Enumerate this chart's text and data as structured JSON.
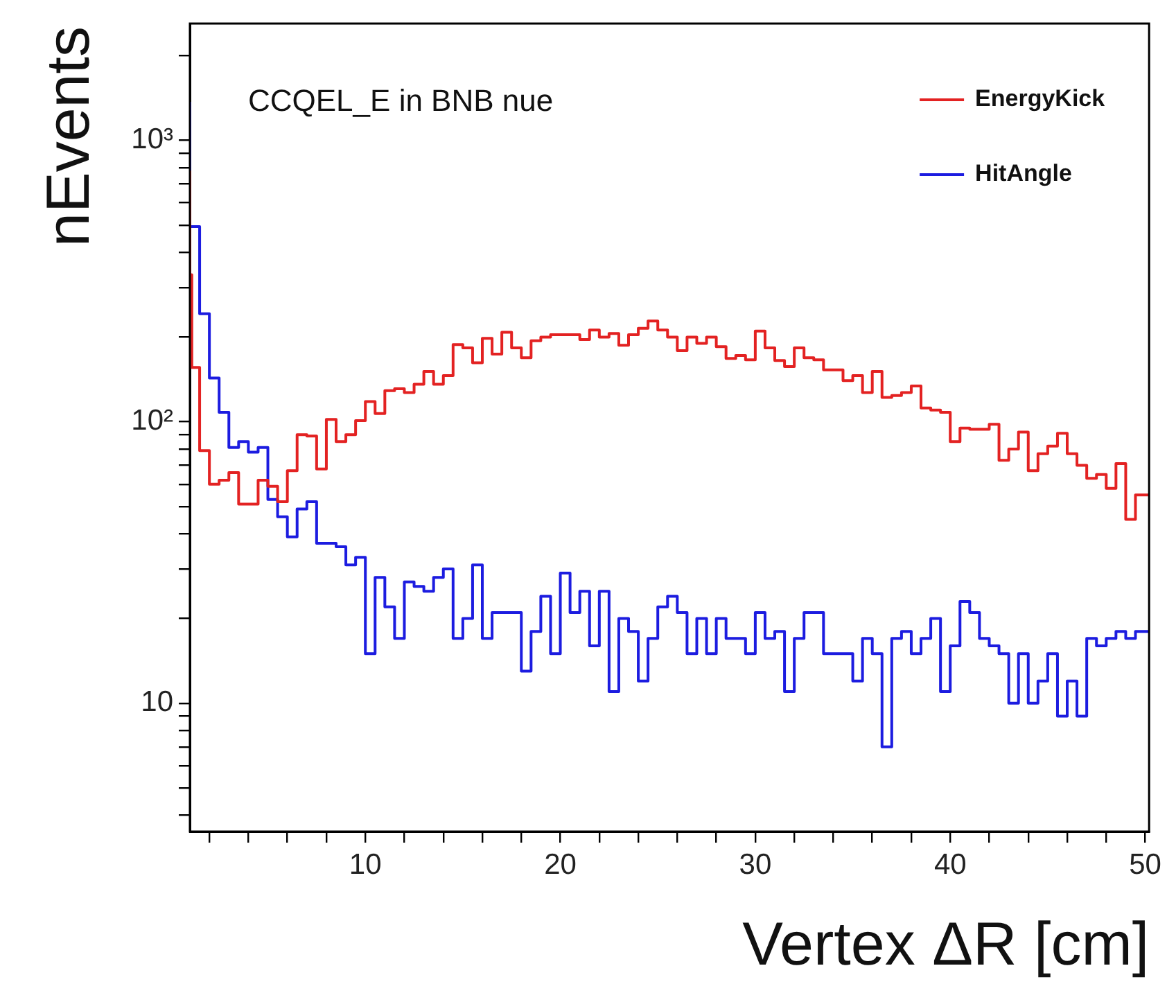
{
  "chart_data": {
    "type": "step",
    "xlabel": "Vertex ΔR [cm]",
    "ylabel": "nEvents",
    "annotations": [
      "CCQEL_E in BNB nue"
    ],
    "legend": "top right",
    "log": true,
    "series": [
      {
        "name": "EnergyKick",
        "color": "#e32222",
        "x": [
          1,
          1.1,
          1.5,
          2,
          2.5,
          3,
          3.5,
          4,
          4.5,
          5,
          5.5,
          6,
          6.5,
          7,
          7.5,
          8,
          8.5,
          9,
          9.5,
          10,
          10.5,
          11,
          11.5,
          12,
          12.5,
          13,
          13.5,
          14,
          14.5,
          15,
          15.5,
          16,
          16.5,
          17,
          17.5,
          18,
          18.5,
          19,
          19.5,
          20,
          20.5,
          21,
          21.5,
          22,
          22.5,
          23,
          23.5,
          24,
          24.5,
          25,
          25.5,
          26,
          26.5,
          27,
          27.5,
          28,
          28.5,
          29,
          29.5,
          30,
          30.5,
          31,
          31.5,
          32,
          32.5,
          33,
          33.5,
          34,
          34.5,
          35,
          35.5,
          36,
          36.5,
          37,
          37.5,
          38,
          38.5,
          39,
          39.5,
          40,
          40.5,
          41,
          41.5,
          42,
          42.5,
          43,
          43.5,
          44,
          44.5,
          45,
          45.5,
          46,
          46.5,
          47,
          47.5,
          48,
          48.5,
          49,
          49.5,
          50
        ],
        "values": [
          780,
          333,
          156,
          79,
          60,
          62,
          66,
          51,
          51,
          62,
          59,
          52,
          67,
          90,
          89,
          68,
          102,
          85,
          90,
          101,
          118,
          107,
          129,
          131,
          127,
          136,
          151,
          136,
          146,
          188,
          183,
          162,
          198,
          174,
          208,
          183,
          169,
          194,
          200,
          204,
          204,
          204,
          196,
          212,
          200,
          206,
          187,
          204,
          215,
          228,
          212,
          200,
          179,
          200,
          190,
          200,
          185,
          168,
          172,
          166,
          210,
          183,
          165,
          157,
          183,
          169,
          166,
          153,
          153,
          140,
          146,
          127,
          151,
          122,
          124,
          127,
          134,
          112,
          110,
          108,
          85,
          95,
          94,
          94,
          98,
          73,
          80,
          92,
          67,
          77,
          82,
          91,
          77,
          70,
          63,
          65,
          58,
          71,
          45,
          55
        ]
      },
      {
        "name": "HitAngle",
        "color": "#1c1ce0",
        "x": [
          1,
          1.5,
          2,
          2.5,
          3,
          3.5,
          4,
          4.5,
          5,
          5.5,
          6,
          6.5,
          7,
          7.5,
          8,
          8.5,
          9,
          9.5,
          10,
          10.5,
          11,
          11.5,
          12,
          12.5,
          13,
          13.5,
          14,
          14.5,
          15,
          15.5,
          16,
          16.5,
          17,
          17.5,
          18,
          18.5,
          19,
          19.5,
          20,
          20.5,
          21,
          21.5,
          22,
          22.5,
          23,
          23.5,
          24,
          24.5,
          25,
          25.5,
          26,
          26.5,
          27,
          27.5,
          28,
          28.5,
          29,
          29.5,
          30,
          30.5,
          31,
          31.5,
          32,
          32.5,
          33,
          33.5,
          34,
          34.5,
          35,
          35.5,
          36,
          36.5,
          37,
          37.5,
          38,
          38.5,
          39,
          39.5,
          40,
          40.5,
          41,
          41.5,
          42,
          42.5,
          43,
          43.5,
          44,
          44.5,
          45,
          45.5,
          46,
          46.5,
          47,
          47.5,
          48,
          48.5,
          49,
          49.5,
          50
        ],
        "values": [
          1370,
          494,
          242,
          143,
          108,
          81,
          85,
          78,
          81,
          53,
          46,
          39,
          49,
          52,
          37,
          37,
          36,
          31,
          33,
          15,
          28,
          22,
          17,
          27,
          26,
          25,
          28,
          30,
          17,
          20,
          31,
          17,
          21,
          21,
          21,
          13,
          18,
          24,
          15,
          29,
          21,
          25,
          16,
          25,
          11,
          20,
          18,
          12,
          17,
          22,
          24,
          21,
          15,
          20,
          15,
          20,
          17,
          17,
          15,
          21,
          17,
          18,
          11,
          17,
          21,
          21,
          15,
          15,
          15,
          12,
          17,
          15,
          7,
          17,
          18,
          15,
          17,
          20,
          11,
          16,
          23,
          21,
          17,
          16,
          15,
          10,
          15,
          10,
          12,
          15,
          9,
          12,
          9,
          17,
          16,
          17,
          18,
          17,
          18
        ]
      }
    ],
    "xlim": [
      1,
      50.2
    ],
    "xticks": [
      {
        "value": 2,
        "label": null
      },
      {
        "value": 4,
        "label": null
      },
      {
        "value": 6,
        "label": null
      },
      {
        "value": 8,
        "label": null
      },
      10,
      {
        "value": 12,
        "label": null
      },
      {
        "value": 14,
        "label": null
      },
      {
        "value": 16,
        "label": null
      },
      {
        "value": 18,
        "label": null
      },
      20,
      {
        "value": 22,
        "label": null
      },
      {
        "value": 24,
        "label": null
      },
      {
        "value": 26,
        "label": null
      },
      {
        "value": 28,
        "label": null
      },
      30,
      {
        "value": 32,
        "label": null
      },
      {
        "value": 34,
        "label": null
      },
      {
        "value": 36,
        "label": null
      },
      {
        "value": 38,
        "label": null
      },
      40,
      {
        "value": 42,
        "label": null
      },
      {
        "value": 44,
        "label": null
      },
      {
        "value": 46,
        "label": null
      },
      {
        "value": 48,
        "label": null
      },
      50
    ],
    "ylim": [
      3.5,
      2600
    ],
    "yticks": [
      {
        "value": 4,
        "label": null
      },
      {
        "value": 5,
        "label": null
      },
      {
        "value": 6,
        "label": null
      },
      {
        "value": 7,
        "label": null
      },
      {
        "value": 8,
        "label": null
      },
      {
        "value": 9,
        "label": null
      },
      10,
      {
        "value": 20,
        "label": null
      },
      {
        "value": 30,
        "label": null
      },
      {
        "value": 40,
        "label": null
      },
      {
        "value": 50,
        "label": null
      },
      {
        "value": 60,
        "label": null
      },
      {
        "value": 70,
        "label": null
      },
      {
        "value": 80,
        "label": null
      },
      {
        "value": 90,
        "label": null
      },
      {
        "value": 100,
        "label": "10²"
      },
      {
        "value": 200,
        "label": null
      },
      {
        "value": 300,
        "label": null
      },
      {
        "value": 400,
        "label": null
      },
      {
        "value": 500,
        "label": null
      },
      {
        "value": 600,
        "label": null
      },
      {
        "value": 700,
        "label": null
      },
      {
        "value": 800,
        "label": null
      },
      {
        "value": 900,
        "label": null
      },
      {
        "value": 1000,
        "label": "10³"
      },
      {
        "value": 2000,
        "label": null
      }
    ]
  }
}
